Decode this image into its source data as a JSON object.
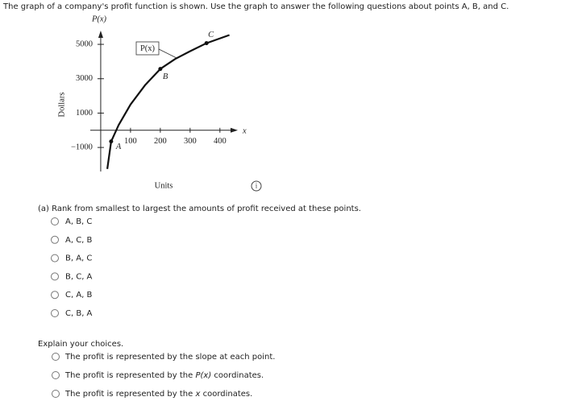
{
  "header": {
    "text": "The graph of a company's profit function is shown. Use the graph to answer the following questions about points A, B, and C."
  },
  "graph": {
    "y_label": "P(x)",
    "x_label": "x",
    "y_title": "Dollars",
    "x_title": "Units",
    "curve_label": "P(x)",
    "xlim": [
      -35,
      460
    ],
    "ylim": [
      -2400,
      5800
    ],
    "xticks": [
      100,
      200,
      300,
      400
    ],
    "yticks": [
      5000,
      3000,
      1000,
      {
        "value": -1000,
        "label": "−1000"
      }
    ],
    "curve": {
      "x": [
        22,
        35,
        60,
        100,
        150,
        200,
        250,
        300,
        355,
        432
      ],
      "y": [
        -2250,
        -650,
        300,
        1500,
        2650,
        3570,
        4150,
        4600,
        5070,
        5540
      ]
    },
    "points": [
      {
        "label": "A",
        "x": 35,
        "y": -650
      },
      {
        "label": "B",
        "x": 200,
        "y": 3570
      },
      {
        "label": "C",
        "x": 355,
        "y": 5070
      }
    ]
  },
  "question_a": {
    "prompt": "(a) Rank from smallest to largest the amounts of profit received at these points.",
    "options": [
      "A, B, C",
      "A, C, B",
      "B, A, C",
      "B, C, A",
      "C, A, B",
      "C, B, A"
    ]
  },
  "explain": {
    "prompt": "Explain your choices.",
    "options": [
      [
        "The profit is represented by the slope at each point."
      ],
      [
        "The profit is represented by the ",
        "P(x)",
        " coordinates."
      ],
      [
        "The profit is represented by the ",
        "x",
        " coordinates."
      ]
    ]
  }
}
